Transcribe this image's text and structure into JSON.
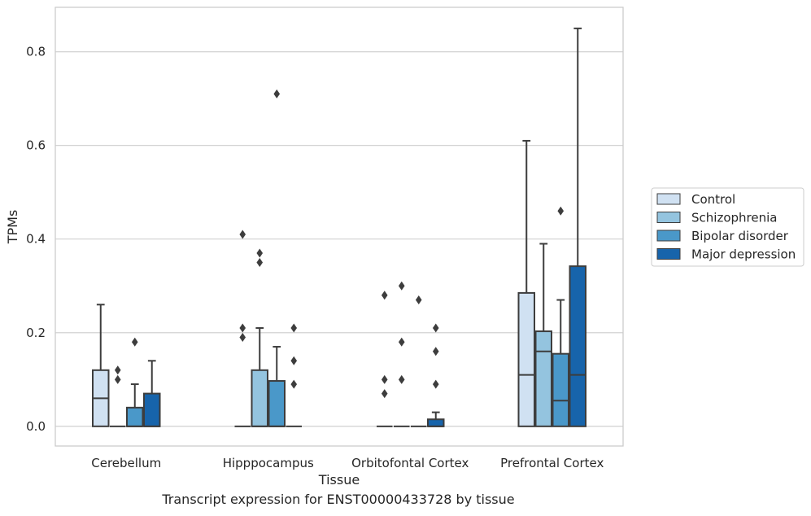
{
  "caption": "Transcript expression for ENST00000433728 by tissue",
  "chart_data": {
    "type": "box",
    "xlabel": "Tissue",
    "ylabel": "TPMs",
    "ylim": [
      -0.042,
      0.895
    ],
    "yticks": [
      0.0,
      0.2,
      0.4,
      0.6,
      0.8
    ],
    "ytick_labels": [
      "0.0",
      "0.2",
      "0.4",
      "0.6",
      "0.8"
    ],
    "grid": "horizontal",
    "legend_position": "right",
    "categories": [
      "Cerebellum",
      "Hipppocampus",
      "Orbitofontal Cortex",
      "Prefrontal Cortex"
    ],
    "series": [
      {
        "name": "Control",
        "color": "#d0e1f2",
        "boxes": [
          {
            "q1": 0.0,
            "median": 0.06,
            "q3": 0.12,
            "whisker_low": 0.0,
            "whisker_high": 0.26,
            "outliers": []
          },
          {
            "q1": 0.0,
            "median": 0.0,
            "q3": 0.0,
            "whisker_low": 0.0,
            "whisker_high": 0.0,
            "outliers": [
              0.41,
              0.21,
              0.19
            ]
          },
          {
            "q1": 0.0,
            "median": 0.0,
            "q3": 0.0,
            "whisker_low": 0.0,
            "whisker_high": 0.0,
            "outliers": [
              0.28,
              0.1,
              0.07
            ]
          },
          {
            "q1": 0.0,
            "median": 0.11,
            "q3": 0.285,
            "whisker_low": 0.0,
            "whisker_high": 0.61,
            "outliers": []
          }
        ]
      },
      {
        "name": "Schizophrenia",
        "color": "#94c4df",
        "boxes": [
          {
            "q1": 0.0,
            "median": 0.0,
            "q3": 0.0,
            "whisker_low": 0.0,
            "whisker_high": 0.0,
            "outliers": [
              0.12,
              0.1
            ]
          },
          {
            "q1": 0.0,
            "median": 0.0,
            "q3": 0.12,
            "whisker_low": 0.0,
            "whisker_high": 0.21,
            "outliers": [
              0.37,
              0.35
            ]
          },
          {
            "q1": 0.0,
            "median": 0.0,
            "q3": 0.0,
            "whisker_low": 0.0,
            "whisker_high": 0.0,
            "outliers": [
              0.3,
              0.18,
              0.1
            ]
          },
          {
            "q1": 0.0,
            "median": 0.16,
            "q3": 0.203,
            "whisker_low": 0.0,
            "whisker_high": 0.39,
            "outliers": []
          }
        ]
      },
      {
        "name": "Bipolar disorder",
        "color": "#4a98c9",
        "boxes": [
          {
            "q1": 0.0,
            "median": 0.0,
            "q3": 0.04,
            "whisker_low": 0.0,
            "whisker_high": 0.09,
            "outliers": [
              0.18
            ]
          },
          {
            "q1": 0.0,
            "median": 0.0,
            "q3": 0.097,
            "whisker_low": 0.0,
            "whisker_high": 0.17,
            "outliers": [
              0.71
            ]
          },
          {
            "q1": 0.0,
            "median": 0.0,
            "q3": 0.0,
            "whisker_low": 0.0,
            "whisker_high": 0.0,
            "outliers": [
              0.27
            ]
          },
          {
            "q1": 0.0,
            "median": 0.055,
            "q3": 0.155,
            "whisker_low": 0.0,
            "whisker_high": 0.27,
            "outliers": [
              0.46
            ]
          }
        ]
      },
      {
        "name": "Major depression",
        "color": "#1764ab",
        "boxes": [
          {
            "q1": 0.0,
            "median": 0.0,
            "q3": 0.07,
            "whisker_low": 0.0,
            "whisker_high": 0.14,
            "outliers": []
          },
          {
            "q1": 0.0,
            "median": 0.0,
            "q3": 0.0,
            "whisker_low": 0.0,
            "whisker_high": 0.0,
            "outliers": [
              0.21,
              0.14,
              0.09
            ]
          },
          {
            "q1": 0.0,
            "median": 0.0,
            "q3": 0.015,
            "whisker_low": 0.0,
            "whisker_high": 0.03,
            "outliers": [
              0.21,
              0.16,
              0.09
            ]
          },
          {
            "q1": 0.0,
            "median": 0.11,
            "q3": 0.342,
            "whisker_low": 0.0,
            "whisker_high": 0.85,
            "outliers": []
          }
        ]
      }
    ]
  }
}
